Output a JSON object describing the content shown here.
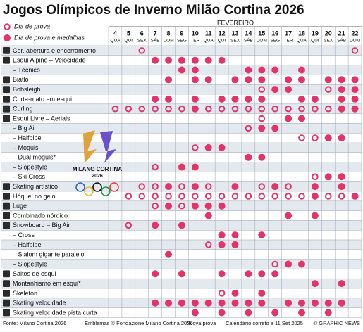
{
  "title": "Jogos Olímpicos de Inverno Milão Cortina 2026",
  "legend": {
    "ring": "Dia de prova",
    "dot": "Dia de prova e medalhas"
  },
  "month": "FEVEREIRO",
  "days": [
    {
      "day": 4,
      "weekday": "QUA"
    },
    {
      "day": 5,
      "weekday": "QUI"
    },
    {
      "day": 6,
      "weekday": "SEX"
    },
    {
      "day": 7,
      "weekday": "SÁB"
    },
    {
      "day": 8,
      "weekday": "DOM"
    },
    {
      "day": 9,
      "weekday": "SEG"
    },
    {
      "day": 10,
      "weekday": "TER"
    },
    {
      "day": 11,
      "weekday": "QUA"
    },
    {
      "day": 12,
      "weekday": "QUI"
    },
    {
      "day": 13,
      "weekday": "SEX"
    },
    {
      "day": 14,
      "weekday": "SÁB"
    },
    {
      "day": 15,
      "weekday": "DOM"
    },
    {
      "day": 16,
      "weekday": "SEG"
    },
    {
      "day": 17,
      "weekday": "TER"
    },
    {
      "day": 18,
      "weekday": "QUA"
    },
    {
      "day": 19,
      "weekday": "QUI"
    },
    {
      "day": 20,
      "weekday": "SEX"
    },
    {
      "day": 21,
      "weekday": "SÁB"
    },
    {
      "day": 22,
      "weekday": "DOM"
    }
  ],
  "rows": [
    {
      "label": "Cer. abertura e encerramento",
      "prova": [
        6,
        22
      ],
      "medalhas": []
    },
    {
      "label": "Esqui Alpino – Velocidade",
      "prova": [],
      "medalhas": [
        7,
        8,
        9,
        10,
        11,
        12
      ]
    },
    {
      "label": "– Técnico",
      "prova": [],
      "medalhas": [
        9,
        10,
        14,
        15,
        16,
        18
      ]
    },
    {
      "label": "Biatlo",
      "prova": [],
      "medalhas": [
        8,
        10,
        11,
        13,
        14,
        15,
        17,
        18,
        20,
        21,
        22
      ]
    },
    {
      "label": "Bobsleigh",
      "prova": [
        15,
        20
      ],
      "medalhas": [
        16,
        17,
        21,
        22
      ]
    },
    {
      "label": "Corta-mato em esqui",
      "prova": [],
      "medalhas": [
        7,
        8,
        10,
        12,
        13,
        14,
        15,
        18,
        19,
        21,
        22
      ]
    },
    {
      "label": "Curling",
      "prova": [
        4,
        5,
        6,
        7,
        8,
        9,
        11,
        12,
        13,
        14,
        15,
        16,
        17,
        18,
        19,
        20
      ],
      "medalhas": [
        10,
        21,
        22
      ]
    },
    {
      "label": "Esqui Livre – Aerials",
      "prova": [
        15
      ],
      "medalhas": [
        17,
        18
      ]
    },
    {
      "label": "– Big Air",
      "prova": [
        14
      ],
      "medalhas": [
        15,
        16
      ]
    },
    {
      "label": "– Halfpipe",
      "prova": [
        18,
        19
      ],
      "medalhas": [
        20,
        21
      ]
    },
    {
      "label": "– Moguls",
      "prova": [
        10
      ],
      "medalhas": [
        11,
        12
      ]
    },
    {
      "label": "– Dual moguls*",
      "prova": [],
      "medalhas": [
        14,
        15
      ]
    },
    {
      "label": "– Slopestyle",
      "prova": [
        7
      ],
      "medalhas": [
        9,
        10
      ]
    },
    {
      "label": "– Ski Cross",
      "prova": [
        19
      ],
      "medalhas": [
        20,
        21
      ]
    },
    {
      "label": "Skating artístico",
      "prova": [
        6,
        7,
        9,
        11,
        15,
        17
      ],
      "medalhas": [
        8,
        10,
        13,
        16,
        19,
        21
      ]
    },
    {
      "label": "Hóquei no gelo",
      "prova": [
        5,
        6,
        7,
        8,
        9,
        10,
        11,
        12,
        13,
        14,
        15,
        16,
        17,
        18,
        20,
        21
      ],
      "medalhas": [
        19,
        22
      ]
    },
    {
      "label": "Luge",
      "prova": [
        7,
        9
      ],
      "medalhas": [
        8,
        10,
        11,
        12
      ]
    },
    {
      "label": "Combinado nórdico",
      "prova": [],
      "medalhas": [
        11,
        17,
        19
      ]
    },
    {
      "label": "Snowboard – Big Air",
      "prova": [
        5
      ],
      "medalhas": [
        7,
        9
      ]
    },
    {
      "label": "– Cross",
      "prova": [],
      "medalhas": [
        12,
        13,
        15
      ]
    },
    {
      "label": "– Halfpipe",
      "prova": [
        11
      ],
      "medalhas": [
        12,
        13
      ]
    },
    {
      "label": "– Slalom gigante paralelo",
      "prova": [],
      "medalhas": [
        8
      ]
    },
    {
      "label": "– Slopestyle",
      "prova": [
        16
      ],
      "medalhas": [
        17,
        18
      ]
    },
    {
      "label": "Saltos de esqui",
      "prova": [],
      "medalhas": [
        7,
        9,
        12,
        14,
        15,
        16
      ]
    },
    {
      "label": "Montanhismo em esqui*",
      "prova": [],
      "medalhas": [
        19,
        21
      ]
    },
    {
      "label": "Skeleton",
      "prova": [
        12
      ],
      "medalhas": [
        13,
        15
      ]
    },
    {
      "label": "Skating velocidade",
      "prova": [],
      "medalhas": [
        7,
        8,
        9,
        10,
        11,
        12,
        13,
        14,
        15,
        17,
        18,
        19,
        20,
        21
      ]
    },
    {
      "label": "Skating velocidade pista curta",
      "prova": [],
      "medalhas": [
        10,
        12,
        14,
        16,
        18,
        20
      ]
    }
  ],
  "logo": {
    "name": "MILANO CORTINA",
    "year": "2026"
  },
  "footer": {
    "source": "Fonte: Milano Cortina 2026",
    "emblems": "Emblemas © Fondazione Milano Cortina 2026",
    "note": "*Nova prova",
    "date": "Calendário correto a 11 Set 2025",
    "credit": "© GRAPHIC NEWS"
  }
}
